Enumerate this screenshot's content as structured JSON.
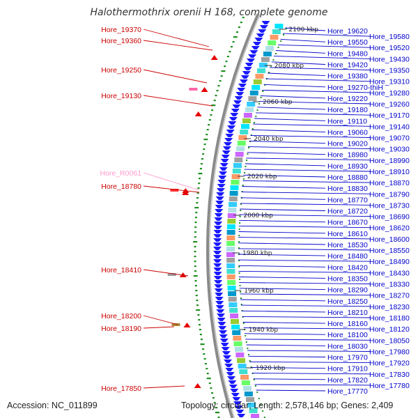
{
  "title": "Halothermothrix orenii H 168, complete genome",
  "accession": "Accession: NC_011899",
  "topology": "Topology: circular; Length: 2,578,146 bp; Genes: 2,409",
  "colors": {
    "backbone": "#8a8a8a",
    "forward_cds": "#1a1aff",
    "reverse_marker": "#e60000",
    "gc_dots": "#1f8f1f",
    "label_right": "#0000cc",
    "label_left": "#cc0000",
    "label_pink": "#ff99cc"
  },
  "kbp_ticks": [
    "2100 kbp",
    "2080 kbp",
    "2060 kbp",
    "2040 kbp",
    "2020 kbp",
    "2000 kbp",
    "1980 kbp",
    "1960 kbp",
    "1940 kbp",
    "1920 kbp"
  ],
  "right_labels": [
    "Hore_19620",
    "Hore_19580",
    "Hore_19550",
    "Hore_19520",
    "Hore_19480",
    "Hore_19430",
    "Hore_19420",
    "Hore_19350",
    "Hore_19380",
    "Hore_19310",
    "Hore_19270-thiH",
    "Hore_19280",
    "Hore_19220",
    "Hore_19260",
    "Hore_19180",
    "Hore_19170",
    "Hore_19110",
    "Hore_19140",
    "Hore_19060",
    "Hore_19070",
    "Hore_19020",
    "Hore_19030",
    "Hore_18980",
    "Hore_18990",
    "Hore_18930",
    "Hore_18910",
    "Hore_18880",
    "Hore_18870",
    "Hore_18830",
    "Hore_18790",
    "Hore_18770",
    "Hore_18730",
    "Hore_18720",
    "Hore_18690",
    "Hore_18670",
    "Hore_18620",
    "Hore_18610",
    "Hore_18600",
    "Hore_18530",
    "Hore_18550",
    "Hore_18480",
    "Hore_18490",
    "Hore_18420",
    "Hore_18430",
    "Hore_18350",
    "Hore_18330",
    "Hore_18290",
    "Hore_18270",
    "Hore_18250",
    "Hore_18230",
    "Hore_18210",
    "Hore_18180",
    "Hore_18160",
    "Hore_18120",
    "Hore_18100",
    "Hore_18050",
    "Hore_18030",
    "Hore_17980",
    "Hore_17970",
    "Hore_17920",
    "Hore_17910",
    "Hore_17830",
    "Hore_17820",
    "Hore_17780",
    "Hore_17770"
  ],
  "left_labels": [
    "Hore_19370",
    "Hore_19360",
    "Hore_19250",
    "Hore_19130",
    "Hore_R0061",
    "Hore_18780",
    "Hore_18410",
    "Hore_18200",
    "Hore_18190",
    "Hore_17850"
  ]
}
